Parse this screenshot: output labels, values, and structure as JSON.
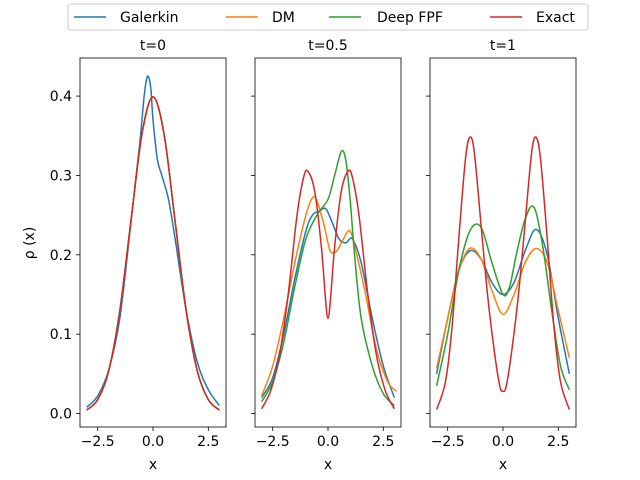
{
  "chart_data": {
    "type": "line",
    "legend": {
      "placement": "top",
      "entries": [
        {
          "name": "Galerkin",
          "color": "#1f77b4"
        },
        {
          "name": "DM",
          "color": "#ff7f0e"
        },
        {
          "name": "Deep FPF",
          "color": "#2ca02c"
        },
        {
          "name": "Exact",
          "color": "#d62728"
        }
      ]
    },
    "ylabel": "ρ (x)",
    "ylim": [
      -0.017,
      0.448
    ],
    "yticks": [
      0.0,
      0.1,
      0.2,
      0.3,
      0.4
    ],
    "ytick_labels": [
      "0.0",
      "0.1",
      "0.2",
      "0.3",
      "0.4"
    ],
    "xlim": [
      -3.3,
      3.3
    ],
    "xticks": [
      -2.5,
      0.0,
      2.5
    ],
    "xtick_labels": [
      "−2.5",
      "0.0",
      "2.5"
    ],
    "panels": [
      {
        "title": "t=0",
        "xlabel": "x",
        "series": [
          {
            "name": "Galerkin",
            "x": [
              -3.0,
              -2.5,
              -2.0,
              -1.5,
              -1.0,
              -0.6,
              -0.4,
              -0.25,
              -0.1,
              0.0,
              0.2,
              0.4,
              0.7,
              1.0,
              1.5,
              2.0,
              2.5,
              3.0
            ],
            "y": [
              0.008,
              0.022,
              0.055,
              0.12,
              0.24,
              0.34,
              0.4,
              0.425,
              0.41,
              0.37,
              0.32,
              0.3,
              0.27,
              0.22,
              0.13,
              0.065,
              0.03,
              0.01
            ]
          },
          {
            "name": "DM",
            "x": [
              -3.0,
              -2.5,
              -2.0,
              -1.5,
              -1.0,
              -0.5,
              0.0,
              0.5,
              1.0,
              1.5,
              2.0,
              2.5,
              3.0
            ],
            "y": [
              0.0044,
              0.0175,
              0.054,
              0.1295,
              0.242,
              0.352,
              0.399,
              0.352,
              0.242,
              0.1295,
              0.054,
              0.0175,
              0.0044
            ]
          },
          {
            "name": "Deep FPF",
            "x": [
              -3.0,
              -2.5,
              -2.0,
              -1.5,
              -1.0,
              -0.5,
              0.0,
              0.5,
              1.0,
              1.5,
              2.0,
              2.5,
              3.0
            ],
            "y": [
              0.0044,
              0.0175,
              0.054,
              0.1295,
              0.242,
              0.352,
              0.399,
              0.352,
              0.242,
              0.1295,
              0.054,
              0.0175,
              0.0044
            ]
          },
          {
            "name": "Exact",
            "x": [
              -3.0,
              -2.5,
              -2.0,
              -1.5,
              -1.0,
              -0.5,
              0.0,
              0.5,
              1.0,
              1.5,
              2.0,
              2.5,
              3.0
            ],
            "y": [
              0.0044,
              0.0175,
              0.054,
              0.1295,
              0.242,
              0.352,
              0.399,
              0.352,
              0.242,
              0.1295,
              0.054,
              0.0175,
              0.0044
            ]
          }
        ]
      },
      {
        "title": "t=0.5",
        "xlabel": "x",
        "series": [
          {
            "name": "Galerkin",
            "x": [
              -3.0,
              -2.5,
              -2.0,
              -1.5,
              -1.0,
              -0.7,
              -0.4,
              -0.1,
              0.2,
              0.5,
              0.8,
              1.1,
              1.5,
              2.0,
              2.5,
              3.0
            ],
            "y": [
              0.02,
              0.045,
              0.1,
              0.17,
              0.23,
              0.25,
              0.255,
              0.258,
              0.24,
              0.22,
              0.215,
              0.22,
              0.19,
              0.12,
              0.06,
              0.02
            ]
          },
          {
            "name": "DM",
            "x": [
              -3.0,
              -2.5,
              -2.0,
              -1.5,
              -1.0,
              -0.7,
              -0.5,
              -0.2,
              0.1,
              0.4,
              0.7,
              1.0,
              1.3,
              1.7,
              2.2,
              2.7,
              3.1
            ],
            "y": [
              0.022,
              0.06,
              0.12,
              0.19,
              0.25,
              0.272,
              0.268,
              0.24,
              0.205,
              0.205,
              0.22,
              0.23,
              0.2,
              0.15,
              0.08,
              0.04,
              0.028
            ]
          },
          {
            "name": "Deep FPF",
            "x": [
              -3.0,
              -2.5,
              -2.0,
              -1.5,
              -1.0,
              -0.5,
              0.0,
              0.3,
              0.6,
              0.8,
              1.0,
              1.2,
              1.5,
              2.0,
              2.5,
              3.0
            ],
            "y": [
              0.015,
              0.04,
              0.09,
              0.16,
              0.22,
              0.25,
              0.27,
              0.3,
              0.33,
              0.32,
              0.27,
              0.2,
              0.12,
              0.06,
              0.025,
              0.01
            ]
          },
          {
            "name": "Exact",
            "x": [
              -3.0,
              -2.6,
              -2.2,
              -1.8,
              -1.4,
              -1.1,
              -0.9,
              -0.6,
              -0.3,
              -0.1,
              0.0,
              0.1,
              0.3,
              0.6,
              0.9,
              1.1,
              1.4,
              1.8,
              2.2,
              2.6,
              3.0
            ],
            "y": [
              0.006,
              0.028,
              0.072,
              0.15,
              0.25,
              0.298,
              0.305,
              0.28,
              0.21,
              0.14,
              0.12,
              0.14,
              0.21,
              0.28,
              0.305,
              0.298,
              0.25,
              0.15,
              0.072,
              0.028,
              0.006
            ]
          }
        ]
      },
      {
        "title": "t=1",
        "xlabel": "x",
        "series": [
          {
            "name": "Galerkin",
            "x": [
              -3.0,
              -2.5,
              -2.0,
              -1.5,
              -1.0,
              -0.5,
              0.0,
              0.5,
              1.0,
              1.5,
              2.0,
              2.5,
              3.0
            ],
            "y": [
              0.05,
              0.12,
              0.18,
              0.205,
              0.195,
              0.165,
              0.15,
              0.165,
              0.205,
              0.232,
              0.2,
              0.12,
              0.05
            ]
          },
          {
            "name": "DM",
            "x": [
              -3.0,
              -2.5,
              -2.0,
              -1.5,
              -1.0,
              -0.5,
              0.0,
              0.5,
              1.0,
              1.5,
              2.0,
              2.5,
              3.0
            ],
            "y": [
              0.057,
              0.12,
              0.18,
              0.208,
              0.195,
              0.155,
              0.125,
              0.15,
              0.19,
              0.208,
              0.19,
              0.13,
              0.07
            ]
          },
          {
            "name": "Deep FPF",
            "x": [
              -3.0,
              -2.5,
              -2.0,
              -1.5,
              -1.0,
              -0.5,
              0.0,
              0.3,
              0.6,
              1.0,
              1.4,
              1.8,
              2.2,
              2.6,
              3.0
            ],
            "y": [
              0.035,
              0.1,
              0.18,
              0.23,
              0.235,
              0.19,
              0.15,
              0.16,
              0.2,
              0.245,
              0.26,
              0.21,
              0.13,
              0.06,
              0.03
            ]
          },
          {
            "name": "Exact",
            "x": [
              -3.0,
              -2.6,
              -2.3,
              -2.0,
              -1.7,
              -1.5,
              -1.3,
              -1.0,
              -0.7,
              -0.4,
              -0.15,
              0.0,
              0.15,
              0.4,
              0.7,
              1.0,
              1.3,
              1.5,
              1.7,
              2.0,
              2.3,
              2.6,
              3.0
            ],
            "y": [
              0.005,
              0.04,
              0.11,
              0.22,
              0.32,
              0.348,
              0.33,
              0.24,
              0.15,
              0.08,
              0.035,
              0.028,
              0.035,
              0.08,
              0.15,
              0.24,
              0.33,
              0.348,
              0.32,
              0.22,
              0.11,
              0.04,
              0.005
            ]
          }
        ]
      }
    ]
  }
}
